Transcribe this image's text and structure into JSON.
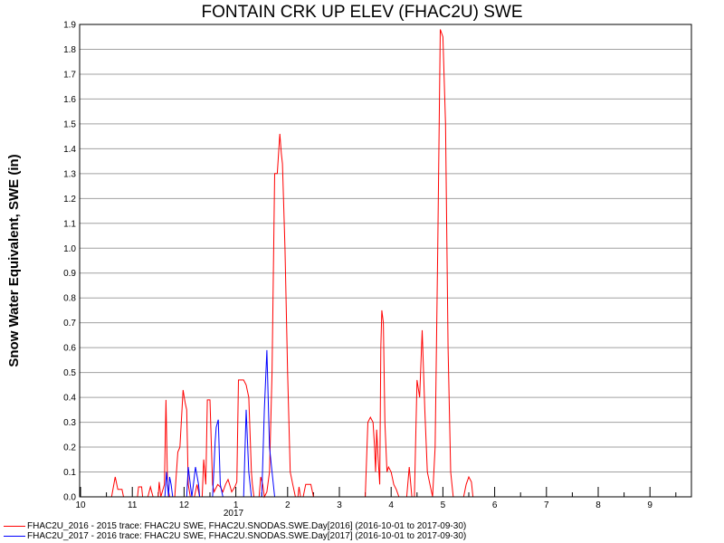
{
  "chart_data": {
    "type": "line",
    "title": "FONTAIN CRK UP ELEV (FHAC2U) SWE",
    "ylabel": "Snow Water Equivalent, SWE (in)",
    "xlabel": "",
    "ylim": [
      0,
      1.9
    ],
    "yticks": [
      "0.0",
      "0.1",
      "0.2",
      "0.3",
      "0.4",
      "0.5",
      "0.6",
      "0.7",
      "0.8",
      "0.9",
      "1.0",
      "1.1",
      "1.2",
      "1.3",
      "1.4",
      "1.5",
      "1.6",
      "1.7",
      "1.8",
      "1.9"
    ],
    "xticks": [
      "10",
      "11",
      "12",
      "1",
      "2",
      "3",
      "4",
      "5",
      "6",
      "7",
      "8",
      "9"
    ],
    "year_label": "2017",
    "grid": true,
    "legend_position": "bottom",
    "series": [
      {
        "name": "FHAC2U_2016 - 2015 trace: FHAC2U SWE, FHAC2U.SNODAS.SWE.Day[2016] (2016-10-01 to 2017-09-30)",
        "color": "#ff0000",
        "points": [
          [
            0.6,
            0
          ],
          [
            0.67,
            0.08
          ],
          [
            0.72,
            0.03
          ],
          [
            0.8,
            0.03
          ],
          [
            0.83,
            0
          ],
          [
            1.1,
            0
          ],
          [
            1.12,
            0.04
          ],
          [
            1.18,
            0.04
          ],
          [
            1.2,
            0
          ],
          [
            1.3,
            0
          ],
          [
            1.35,
            0.04
          ],
          [
            1.4,
            0
          ],
          [
            1.5,
            0
          ],
          [
            1.52,
            0.06
          ],
          [
            1.55,
            0
          ],
          [
            1.62,
            0.05
          ],
          [
            1.65,
            0.39
          ],
          [
            1.68,
            0.05
          ],
          [
            1.72,
            0
          ],
          [
            1.82,
            0
          ],
          [
            1.88,
            0.18
          ],
          [
            1.92,
            0.2
          ],
          [
            1.98,
            0.43
          ],
          [
            2.02,
            0.38
          ],
          [
            2.05,
            0.35
          ],
          [
            2.08,
            0.05
          ],
          [
            2.12,
            0
          ],
          [
            2.2,
            0
          ],
          [
            2.25,
            0.05
          ],
          [
            2.3,
            0
          ],
          [
            2.35,
            0
          ],
          [
            2.38,
            0.15
          ],
          [
            2.42,
            0.05
          ],
          [
            2.45,
            0.39
          ],
          [
            2.5,
            0.39
          ],
          [
            2.55,
            0.05
          ],
          [
            2.58,
            0.02
          ],
          [
            2.65,
            0.05
          ],
          [
            2.7,
            0.04
          ],
          [
            2.75,
            0.02
          ],
          [
            2.8,
            0.05
          ],
          [
            2.85,
            0.07
          ],
          [
            2.88,
            0.05
          ],
          [
            2.92,
            0.02
          ],
          [
            2.98,
            0.04
          ],
          [
            3.02,
            0.06
          ],
          [
            3.05,
            0.47
          ],
          [
            3.1,
            0.47
          ],
          [
            3.15,
            0.47
          ],
          [
            3.2,
            0.45
          ],
          [
            3.25,
            0.4
          ],
          [
            3.3,
            0.1
          ],
          [
            3.32,
            0.05
          ],
          [
            3.35,
            0
          ],
          [
            3.45,
            0
          ],
          [
            3.48,
            0.08
          ],
          [
            3.52,
            0.05
          ],
          [
            3.55,
            0
          ],
          [
            3.6,
            0.02
          ],
          [
            3.65,
            0.1
          ],
          [
            3.7,
            0.5
          ],
          [
            3.75,
            1.3
          ],
          [
            3.8,
            1.3
          ],
          [
            3.85,
            1.46
          ],
          [
            3.88,
            1.38
          ],
          [
            3.9,
            1.34
          ],
          [
            3.95,
            1.0
          ],
          [
            4.0,
            0.5
          ],
          [
            4.05,
            0.1
          ],
          [
            4.1,
            0.05
          ],
          [
            4.15,
            0
          ],
          [
            4.2,
            0
          ],
          [
            4.22,
            0.04
          ],
          [
            4.25,
            0
          ],
          [
            4.3,
            0
          ],
          [
            4.35,
            0.05
          ],
          [
            4.4,
            0.05
          ],
          [
            4.45,
            0.05
          ],
          [
            4.5,
            0
          ],
          [
            5.5,
            0
          ],
          [
            5.55,
            0.3
          ],
          [
            5.6,
            0.32
          ],
          [
            5.65,
            0.3
          ],
          [
            5.68,
            0.2
          ],
          [
            5.7,
            0.1
          ],
          [
            5.72,
            0.27
          ],
          [
            5.75,
            0.15
          ],
          [
            5.78,
            0.05
          ],
          [
            5.8,
            0.6
          ],
          [
            5.82,
            0.75
          ],
          [
            5.85,
            0.7
          ],
          [
            5.88,
            0.3
          ],
          [
            5.92,
            0.1
          ],
          [
            5.95,
            0.12
          ],
          [
            6.0,
            0.1
          ],
          [
            6.05,
            0.05
          ],
          [
            6.1,
            0.03
          ],
          [
            6.15,
            0
          ],
          [
            6.3,
            0
          ],
          [
            6.35,
            0.12
          ],
          [
            6.4,
            0
          ],
          [
            6.45,
            0
          ],
          [
            6.5,
            0.47
          ],
          [
            6.55,
            0.4
          ],
          [
            6.6,
            0.67
          ],
          [
            6.65,
            0.35
          ],
          [
            6.7,
            0.1
          ],
          [
            6.75,
            0.05
          ],
          [
            6.8,
            0
          ],
          [
            6.85,
            0.2
          ],
          [
            6.9,
            1.0
          ],
          [
            6.95,
            1.88
          ],
          [
            7.0,
            1.85
          ],
          [
            7.05,
            1.5
          ],
          [
            7.1,
            0.6
          ],
          [
            7.15,
            0.1
          ],
          [
            7.2,
            0
          ],
          [
            7.4,
            0
          ],
          [
            7.45,
            0.05
          ],
          [
            7.5,
            0.08
          ],
          [
            7.55,
            0.06
          ],
          [
            7.58,
            0
          ]
        ]
      },
      {
        "name": "FHAC2U_2017 - 2016 trace: FHAC2U SWE, FHAC2U.SNODAS.SWE.Day[2017] (2016-10-01 to 2017-09-30)",
        "color": "#0000ff",
        "points": [
          [
            1.63,
            0
          ],
          [
            1.66,
            0.1
          ],
          [
            1.7,
            0
          ],
          [
            1.72,
            0.08
          ],
          [
            1.75,
            0.05
          ],
          [
            1.78,
            0
          ],
          [
            2.05,
            0
          ],
          [
            2.08,
            0.12
          ],
          [
            2.12,
            0.05
          ],
          [
            2.15,
            0
          ],
          [
            2.18,
            0.05
          ],
          [
            2.22,
            0.12
          ],
          [
            2.28,
            0.05
          ],
          [
            2.3,
            0
          ],
          [
            2.55,
            0
          ],
          [
            2.6,
            0.22
          ],
          [
            2.62,
            0.28
          ],
          [
            2.66,
            0.31
          ],
          [
            2.7,
            0.05
          ],
          [
            2.75,
            0
          ],
          [
            3.15,
            0
          ],
          [
            3.2,
            0.35
          ],
          [
            3.25,
            0.1
          ],
          [
            3.3,
            0
          ],
          [
            3.5,
            0
          ],
          [
            3.55,
            0.35
          ],
          [
            3.6,
            0.59
          ],
          [
            3.65,
            0.2
          ],
          [
            3.7,
            0.1
          ],
          [
            3.75,
            0
          ]
        ]
      }
    ]
  }
}
